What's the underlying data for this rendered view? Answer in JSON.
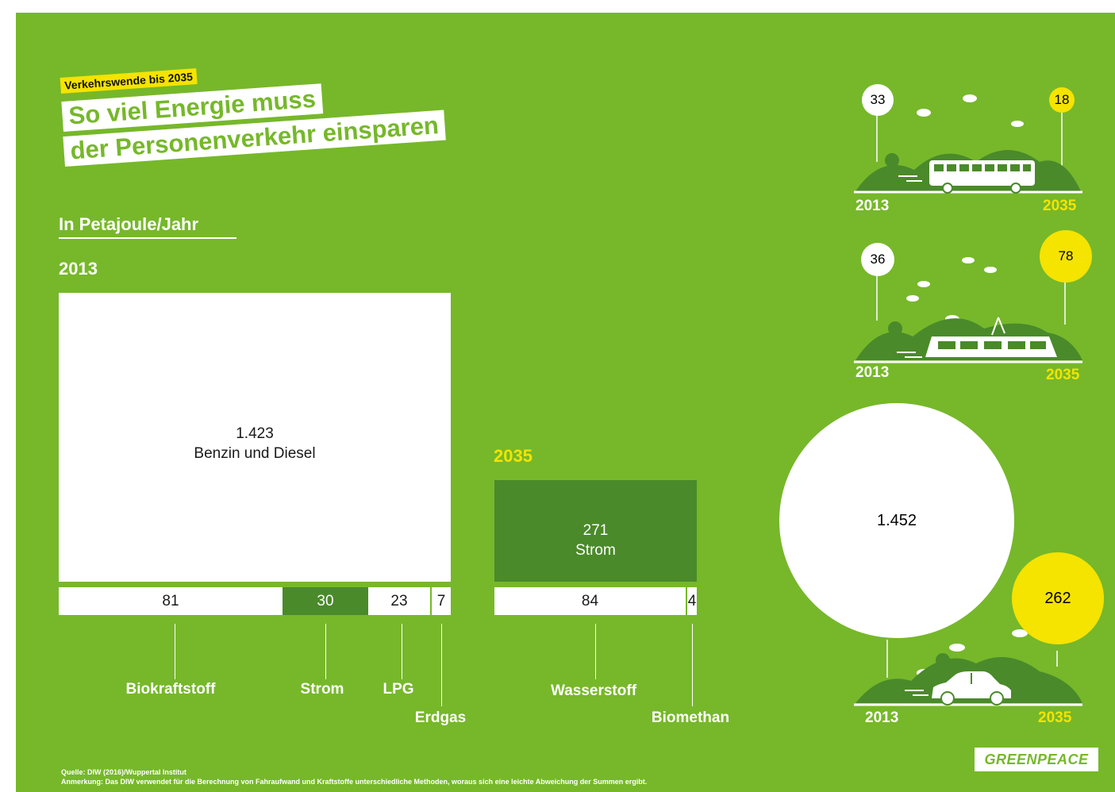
{
  "header": {
    "tag": "Verkehrswende bis 2035",
    "title_line1": "So viel Energie muss",
    "title_line2": "der Personenverkehr einsparen"
  },
  "unit": "In Petajoule/Jahr",
  "year_2013": "2013",
  "year_2035": "2035",
  "chart_data": [
    {
      "type": "bar",
      "title": "2013",
      "unit": "Petajoule/Jahr",
      "segments": [
        {
          "label": "Benzin und Diesel",
          "value": 1423,
          "display": "1.423"
        },
        {
          "label": "Biokraftstoff",
          "value": 81,
          "display": "81"
        },
        {
          "label": "Strom",
          "value": 30,
          "display": "30"
        },
        {
          "label": "LPG",
          "value": 23,
          "display": "23"
        },
        {
          "label": "Erdgas",
          "value": 7,
          "display": "7"
        }
      ]
    },
    {
      "type": "bar",
      "title": "2035",
      "unit": "Petajoule/Jahr",
      "segments": [
        {
          "label": "Strom",
          "value": 271,
          "display": "271"
        },
        {
          "label": "Wasserstoff",
          "value": 84,
          "display": "84"
        },
        {
          "label": "Biomethan",
          "value": 4,
          "display": "4"
        }
      ]
    },
    {
      "type": "bubble",
      "categories": [
        "2013",
        "2035"
      ],
      "series": [
        {
          "values": [
            33,
            18
          ],
          "display": [
            "33",
            "18"
          ]
        },
        {
          "values": [
            36,
            78
          ],
          "display": [
            "36",
            "78"
          ]
        },
        {
          "values": [
            1452,
            262
          ],
          "display": [
            "1.452",
            "262"
          ]
        }
      ]
    }
  ],
  "colors": {
    "background": "#76b82a",
    "dark_green": "#4a8a2a",
    "white": "#ffffff",
    "yellow": "#f5e300"
  },
  "footer": {
    "source": "Quelle: DIW (2016)/Wuppertal Institut",
    "note": "Anmerkung: Das DIW verwendet für die Berechnung von Fahraufwand und Kraftstoffe unterschiedliche Methoden, woraus sich eine leichte Abweichung der Summen ergibt."
  },
  "brand": "GREENPEACE",
  "icons": [
    "bus-icon",
    "tram-icon",
    "car-icon",
    "cloud-icon",
    "tree-icon",
    "hill-icon"
  ]
}
